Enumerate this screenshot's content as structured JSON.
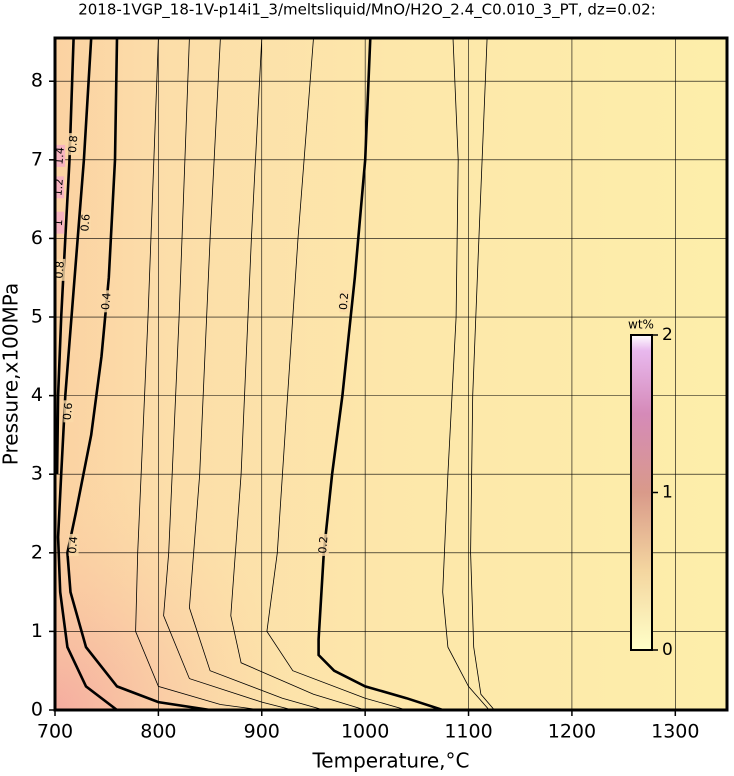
{
  "chart_data": {
    "type": "contour",
    "title": "2018-1VGP_18-1V-p14i1_3/meltsliquid/MnO/H2O_2.4_C0.010_3_PT, dz=0.02:",
    "x_label": "Temperature,°C",
    "y_label": "Pressure,x100MPa",
    "xlim": [
      700,
      1350
    ],
    "ylim": [
      0,
      8.55
    ],
    "xticks": [
      700,
      800,
      900,
      1000,
      1100,
      1200,
      1300
    ],
    "yticks": [
      0,
      1,
      2,
      3,
      4,
      5,
      6,
      7,
      8
    ],
    "grid": true,
    "contours": [
      {
        "level": 0.16,
        "x": [
          1125,
          1112,
          1105,
          1102,
          1104,
          1110,
          1118
        ],
        "y": [
          0,
          0.2,
          0.8,
          2,
          4,
          6,
          8.55
        ]
      },
      {
        "level": 0.18,
        "x": [
          1120,
          1100,
          1080,
          1075,
          1080,
          1088,
          1090,
          1085
        ],
        "y": [
          0,
          0.3,
          0.8,
          1.5,
          3,
          5,
          7,
          8.55
        ]
      },
      {
        "level": 0.2,
        "x": [
          1075,
          1040,
          1000,
          970,
          955,
          955,
          960,
          968,
          978,
          990,
          1000,
          1005
        ],
        "y": [
          0,
          0.15,
          0.3,
          0.5,
          0.7,
          0.9,
          2,
          3,
          4,
          5.5,
          7,
          8.55
        ]
      },
      {
        "level": 0.22,
        "x": [
          1040,
          1000,
          930,
          905,
          915,
          925,
          935,
          950
        ],
        "y": [
          0,
          0.15,
          0.5,
          1,
          2,
          4,
          6,
          8.55
        ]
      },
      {
        "level": 0.24,
        "x": [
          1000,
          950,
          880,
          870,
          880,
          890,
          900
        ],
        "y": [
          0,
          0.2,
          0.6,
          1.2,
          3,
          6,
          8.55
        ]
      },
      {
        "level": 0.26,
        "x": [
          960,
          920,
          850,
          830,
          840,
          850,
          860
        ],
        "y": [
          0,
          0.15,
          0.5,
          1.3,
          3,
          6,
          8.55
        ]
      },
      {
        "level": 0.28,
        "x": [
          930,
          900,
          830,
          805,
          810,
          820,
          830
        ],
        "y": [
          0,
          0.1,
          0.4,
          1.2,
          2,
          5,
          8.55
        ]
      },
      {
        "level": 0.3,
        "x": [
          900,
          860,
          800,
          778,
          780,
          790,
          800
        ],
        "y": [
          0,
          0.07,
          0.3,
          1,
          2,
          5,
          8.55
        ]
      },
      {
        "level": 0.4,
        "x": [
          850,
          800,
          760,
          730,
          715,
          712,
          720,
          735,
          745,
          752,
          758,
          760
        ],
        "y": [
          0,
          0.1,
          0.3,
          0.8,
          1.5,
          2,
          2.5,
          3.5,
          4.5,
          5.5,
          7,
          8.55
        ]
      },
      {
        "level": 0.6,
        "x": [
          760,
          730,
          712,
          705,
          703,
          706,
          710,
          716,
          722,
          728,
          735
        ],
        "y": [
          0,
          0.3,
          0.8,
          1.5,
          2.2,
          3,
          4,
          5,
          6,
          7,
          8.55
        ]
      },
      {
        "level": 0.8,
        "x": [
          702,
          703,
          706,
          710,
          714,
          718
        ],
        "y": [
          3,
          4,
          5,
          6,
          7,
          8.55
        ]
      }
    ],
    "contour_labels": [
      {
        "value": 0.2,
        "x": 980,
        "y": 5.2
      },
      {
        "value": 0.2,
        "x": 960,
        "y": 2.1
      },
      {
        "value": 0.4,
        "x": 750,
        "y": 5.2
      },
      {
        "value": 0.4,
        "x": 718,
        "y": 2.1
      },
      {
        "value": 0.6,
        "x": 713,
        "y": 3.8
      },
      {
        "value": 0.6,
        "x": 730,
        "y": 6.2
      },
      {
        "value": 0.8,
        "x": 705,
        "y": 5.6
      },
      {
        "value": 0.8,
        "x": 718,
        "y": 7.2
      },
      {
        "value": 1,
        "x": 704,
        "y": 6.2
      },
      {
        "value": 1.2,
        "x": 704,
        "y": 6.65
      },
      {
        "value": 1.4,
        "x": 705,
        "y": 7.05
      }
    ],
    "colorbar": {
      "label": "wt%",
      "lim": [
        0,
        2
      ],
      "ticks": [
        0,
        1,
        2
      ]
    }
  }
}
